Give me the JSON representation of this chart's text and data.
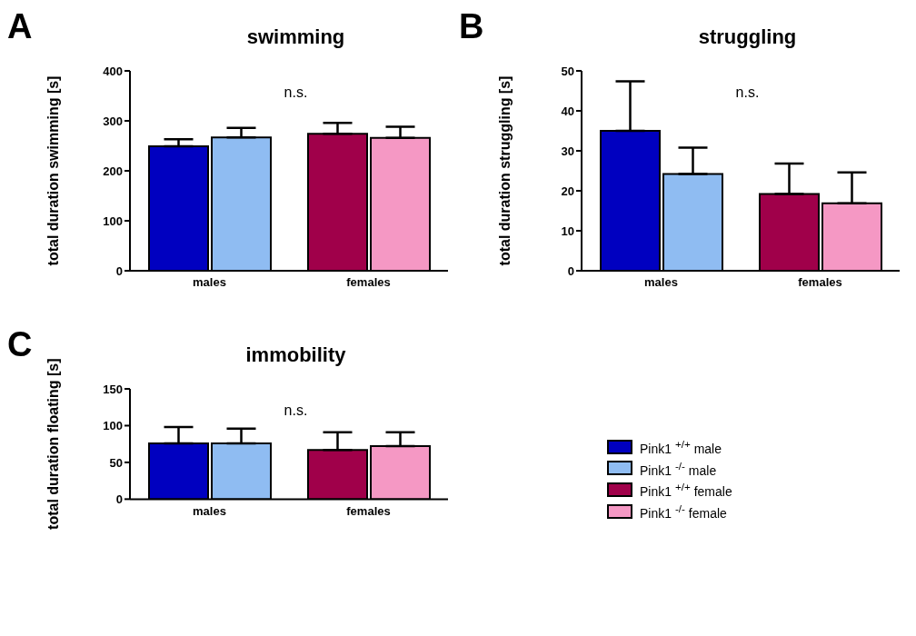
{
  "chart_data": [
    {
      "type": "bar",
      "title": "swimming",
      "ylabel": "total duration swimming [s]",
      "categories": [
        "males",
        "females"
      ],
      "ylim": [
        0,
        400
      ],
      "yticks": [
        0,
        100,
        200,
        300,
        400
      ],
      "grid": false,
      "legend": false,
      "annotations": [
        "A",
        "n.s."
      ],
      "series": [
        {
          "color": "#0000c0",
          "values": [
            249,
            null
          ],
          "errors": [
            [
              249,
              263
            ],
            null
          ]
        },
        {
          "color": "#8fbcf2",
          "values": [
            267,
            null
          ],
          "errors": [
            [
              267,
              286
            ],
            null
          ]
        },
        {
          "color": "#a0004a",
          "values": [
            null,
            274
          ],
          "errors": [
            null,
            [
              274,
              296
            ]
          ]
        },
        {
          "color": "#f598c4",
          "values": [
            null,
            266
          ],
          "errors": [
            null,
            [
              266,
              288
            ]
          ]
        }
      ]
    },
    {
      "type": "bar",
      "title": "struggling",
      "ylabel": "total duration struggling [s]",
      "categories": [
        "males",
        "females"
      ],
      "ylim": [
        0,
        50
      ],
      "yticks": [
        0,
        10,
        20,
        30,
        40,
        50
      ],
      "grid": false,
      "legend": false,
      "annotations": [
        "B",
        "n.s."
      ],
      "series": [
        {
          "color": "#0000c0",
          "values": [
            35,
            null
          ],
          "errors": [
            [
              35,
              47.4
            ],
            null
          ]
        },
        {
          "color": "#8fbcf2",
          "values": [
            24.2,
            null
          ],
          "errors": [
            [
              24.2,
              30.8
            ],
            null
          ]
        },
        {
          "color": "#a0004a",
          "values": [
            null,
            19.2
          ],
          "errors": [
            null,
            [
              19.2,
              26.8
            ]
          ]
        },
        {
          "color": "#f598c4",
          "values": [
            null,
            16.9
          ],
          "errors": [
            null,
            [
              16.9,
              24.6
            ]
          ]
        }
      ]
    },
    {
      "type": "bar",
      "title": "immobility",
      "ylabel": "total duration floating [s]",
      "categories": [
        "males",
        "females"
      ],
      "ylim": [
        0,
        150
      ],
      "yticks": [
        0,
        50,
        100,
        150
      ],
      "grid": false,
      "legend": "right",
      "annotations": [
        "C",
        "n.s."
      ],
      "series": [
        {
          "name": "Pink1 $^{+/+}$ male",
          "color": "#0000c0",
          "values": [
            76,
            null
          ],
          "errors": [
            [
              76,
              98
            ],
            null
          ]
        },
        {
          "name": "Pink1 $^{-/-}$ male",
          "color": "#8fbcf2",
          "values": [
            76,
            null
          ],
          "errors": [
            [
              76,
              96
            ],
            null
          ]
        },
        {
          "name": "Pink1 $^{+/+}$ female",
          "color": "#a0004a",
          "values": [
            null,
            67
          ],
          "errors": [
            null,
            [
              67,
              91
            ]
          ]
        },
        {
          "name": "Pink1 $^{-/-}$ female",
          "color": "#f598c4",
          "values": [
            null,
            72
          ],
          "errors": [
            null,
            [
              72,
              91
            ]
          ]
        }
      ]
    }
  ]
}
